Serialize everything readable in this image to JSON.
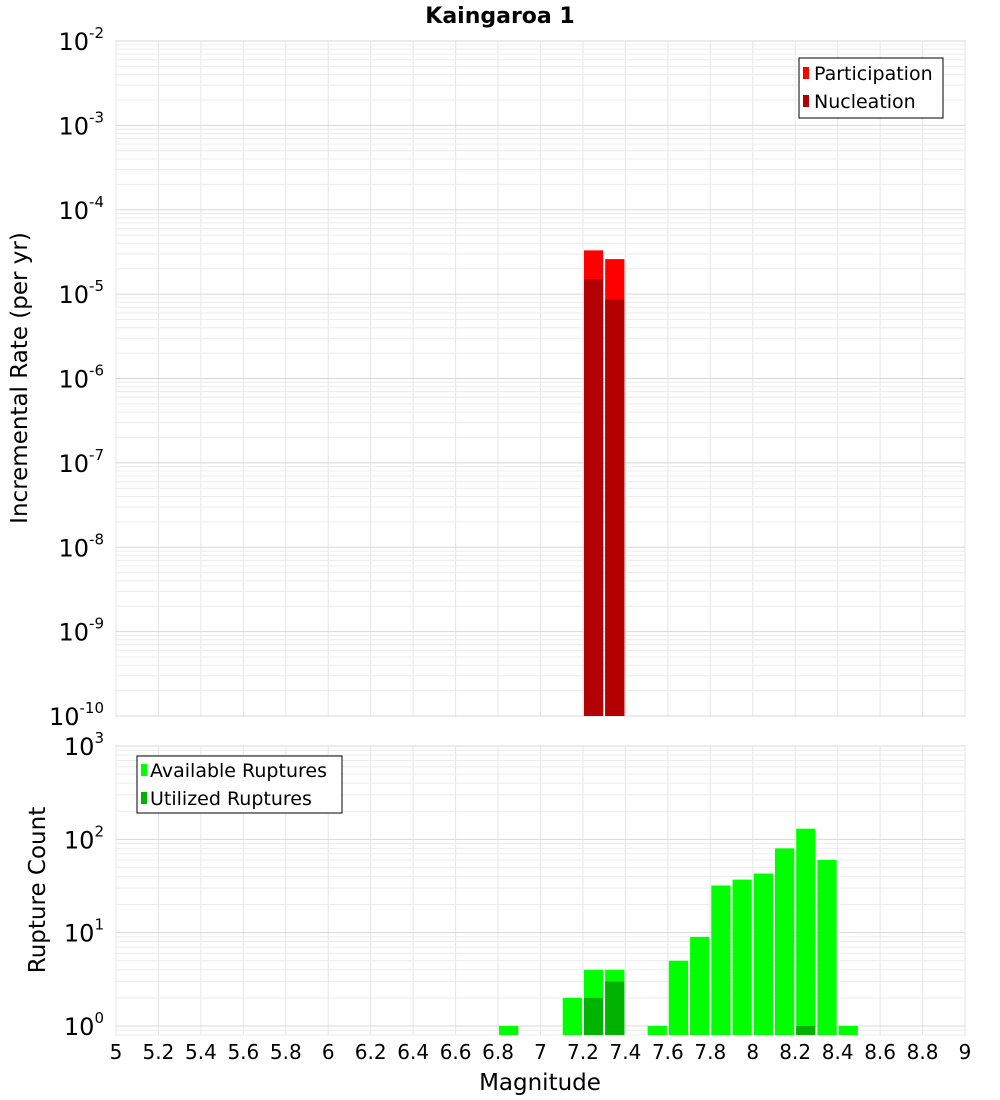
{
  "chart_data": [
    {
      "type": "bar",
      "title": "Kaingaroa 1",
      "xlabel": "",
      "ylabel": "Incremental Rate (per yr)",
      "yscale": "log",
      "ylim": [
        1e-10,
        0.01
      ],
      "xlim": [
        5,
        9
      ],
      "ytick_base": "10",
      "yticks": [
        {
          "exp": "-10",
          "value": 1e-10
        },
        {
          "exp": "-9",
          "value": 1e-09
        },
        {
          "exp": "-8",
          "value": 1e-08
        },
        {
          "exp": "-7",
          "value": 1e-07
        },
        {
          "exp": "-6",
          "value": 1e-06
        },
        {
          "exp": "-5",
          "value": 1e-05
        },
        {
          "exp": "-4",
          "value": 0.0001
        },
        {
          "exp": "-3",
          "value": 0.001
        },
        {
          "exp": "-2",
          "value": 0.01
        }
      ],
      "legend": {
        "location": "top-right",
        "entries": [
          "Participation",
          "Nucleation"
        ]
      },
      "bar_width": 0.1,
      "series": [
        {
          "name": "Participation",
          "color": "#ff0000",
          "x": [
            7.25,
            7.35
          ],
          "values": [
            3.3e-05,
            2.6e-05
          ]
        },
        {
          "name": "Nucleation",
          "color": "#b30000",
          "x": [
            7.25,
            7.35
          ],
          "values": [
            1.5e-05,
            8.6e-06
          ]
        }
      ]
    },
    {
      "type": "bar",
      "title": "",
      "xlabel": "Magnitude",
      "ylabel": "Rupture Count",
      "yscale": "log",
      "ylim": [
        0.8,
        1000
      ],
      "xlim": [
        5,
        9
      ],
      "ytick_base": "10",
      "yticks": [
        {
          "exp": "0",
          "value": 1
        },
        {
          "exp": "1",
          "value": 10
        },
        {
          "exp": "2",
          "value": 100
        },
        {
          "exp": "3",
          "value": 1000
        }
      ],
      "xticks": [
        "5",
        "5.2",
        "5.4",
        "5.6",
        "5.8",
        "6",
        "6.2",
        "6.4",
        "6.6",
        "6.8",
        "7",
        "7.2",
        "7.4",
        "7.6",
        "7.8",
        "8",
        "8.2",
        "8.4",
        "8.6",
        "8.8",
        "9"
      ],
      "legend": {
        "location": "top-left",
        "entries": [
          "Available Ruptures",
          "Utilized Ruptures"
        ]
      },
      "bar_width": 0.1,
      "series": [
        {
          "name": "Available Ruptures",
          "color": "#00ff00",
          "x": [
            6.85,
            7.15,
            7.25,
            7.35,
            7.55,
            7.65,
            7.75,
            7.85,
            7.95,
            8.05,
            8.15,
            8.25,
            8.35,
            8.45
          ],
          "values": [
            1,
            2,
            4,
            4,
            1,
            5,
            9,
            32,
            37,
            43,
            80,
            130,
            60,
            1
          ]
        },
        {
          "name": "Utilized Ruptures",
          "color": "#00b300",
          "x": [
            7.25,
            7.35,
            8.25
          ],
          "values": [
            2,
            3,
            1
          ]
        }
      ]
    }
  ]
}
